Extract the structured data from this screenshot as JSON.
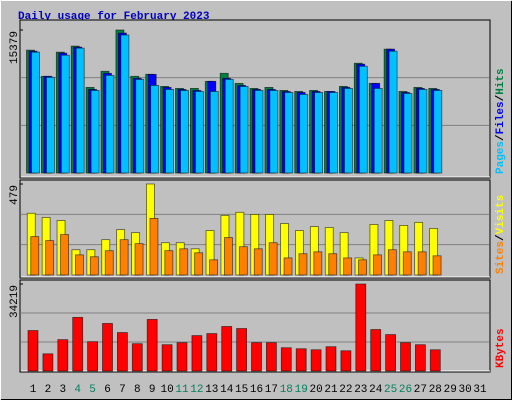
{
  "chart_data": [
    {
      "type": "bar",
      "title": "Daily usage for February 2023",
      "ylim": [
        0,
        15379
      ],
      "yticks": [
        15379
      ],
      "legend_separator": "/",
      "series": [
        {
          "name": "Hits",
          "color": "#008040",
          "values": [
            13213,
            10397,
            12996,
            13646,
            9206,
            10938,
            15379,
            10397,
            10613,
            9314,
            9097,
            9097,
            9855,
            10722,
            9639,
            9097,
            9206,
            8881,
            8772,
            8881,
            8772,
            9314,
            11805,
            9639,
            13321,
            8772,
            9206,
            9097,
            null,
            null,
            null
          ]
        },
        {
          "name": "Files",
          "color": "#0000ff",
          "values": [
            13100,
            10400,
            12890,
            13540,
            8990,
            10720,
            15050,
            10180,
            10610,
            9210,
            8990,
            8880,
            9860,
            10180,
            9420,
            8990,
            8990,
            8770,
            8660,
            8770,
            8770,
            9210,
            11700,
            9640,
            13320,
            8660,
            9100,
            8990,
            null,
            null,
            null
          ]
        },
        {
          "name": "Pages",
          "color": "#00c0ff",
          "values": [
            13000,
            10290,
            12670,
            13430,
            8880,
            10500,
            14840,
            10070,
            9420,
            8990,
            8880,
            8770,
            8770,
            10070,
            9310,
            8880,
            8880,
            8660,
            8450,
            8660,
            8660,
            9100,
            11480,
            9100,
            13100,
            8560,
            8990,
            8880,
            null,
            null,
            null
          ]
        }
      ]
    },
    {
      "type": "bar",
      "ylim": [
        0,
        479
      ],
      "yticks": [
        479
      ],
      "legend_separator": "/",
      "series": [
        {
          "name": "Visits",
          "color": "#ffff00",
          "values": [
            325,
            303,
            287,
            133,
            133,
            186,
            239,
            223,
            479,
            170,
            170,
            138,
            234,
            314,
            330,
            319,
            319,
            271,
            234,
            255,
            250,
            223,
            90,
            266,
            287,
            261,
            277,
            245,
            null,
            null,
            null
          ]
        },
        {
          "name": "Sites",
          "color": "#ff8000",
          "values": [
            202,
            181,
            213,
            106,
            96,
            128,
            186,
            165,
            298,
            128,
            138,
            117,
            80,
            197,
            149,
            138,
            170,
            90,
            112,
            122,
            112,
            90,
            80,
            106,
            133,
            122,
            122,
            101,
            null,
            null,
            null
          ]
        }
      ]
    },
    {
      "type": "bar",
      "ylim": [
        0,
        34219
      ],
      "yticks": [
        34219
      ],
      "legend_separator": "/",
      "categories": [
        "1",
        "2",
        "3",
        "4",
        "5",
        "6",
        "7",
        "8",
        "9",
        "10",
        "11",
        "12",
        "13",
        "14",
        "15",
        "16",
        "17",
        "18",
        "19",
        "20",
        "21",
        "22",
        "23",
        "24",
        "25",
        "26",
        "27",
        "28",
        "29",
        "30",
        "31"
      ],
      "highlight_categories": [
        "4",
        "5",
        "11",
        "12",
        "18",
        "19",
        "25",
        "26"
      ],
      "highlight_color": "#00805c",
      "category_color": "#000000",
      "series": [
        {
          "name": "KBytes",
          "color": "#ff0000",
          "values": [
            15916,
            6764,
            12335,
            21089,
            11539,
            18701,
            15120,
            10743,
            20293,
            10345,
            11141,
            13926,
            14722,
            17508,
            16712,
            11141,
            11141,
            9152,
            8754,
            8356,
            9550,
            7958,
            34219,
            16314,
            14324,
            11141,
            10345,
            8356,
            null,
            null,
            null
          ]
        }
      ]
    }
  ]
}
